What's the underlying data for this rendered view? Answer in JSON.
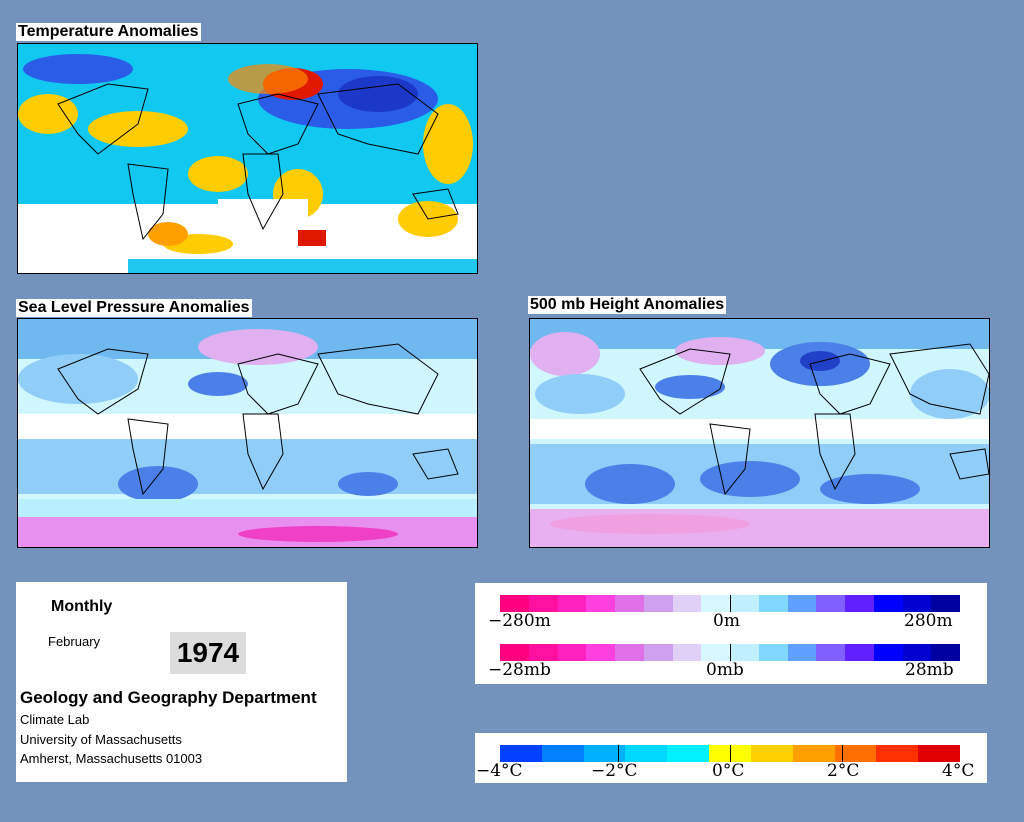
{
  "panels": {
    "temperature_title": "Temperature Anomalies",
    "slp_title": "Sea Level Pressure Anomalies",
    "height_title": "500 mb Height Anomalies"
  },
  "info": {
    "period": "Monthly",
    "month": "February",
    "year": "1974",
    "department": "Geology and Geography Department",
    "lab": "Climate Lab",
    "university": "University of Massachusetts",
    "address": "Amherst, Massachusetts 01003"
  },
  "legend_height": {
    "min_label": "−280m",
    "mid_label": "0m",
    "max_label": "280m",
    "colors": [
      "#ff0080",
      "#ff10a0",
      "#ff20c0",
      "#ff40e0",
      "#e070e8",
      "#d0a0f0",
      "#e0d0f8",
      "#d8f8ff",
      "#c0f0ff",
      "#80d8ff",
      "#60a0ff",
      "#8060ff",
      "#6020ff",
      "#0000ff",
      "#0000d0",
      "#0000a0"
    ]
  },
  "legend_pressure": {
    "min_label": "−28mb",
    "mid_label": "0mb",
    "max_label": "28mb",
    "colors": [
      "#ff0080",
      "#ff10a0",
      "#ff20c0",
      "#ff40e0",
      "#e070e8",
      "#d0a0f0",
      "#e0d0f8",
      "#d8f8ff",
      "#c0f0ff",
      "#80d8ff",
      "#60a0ff",
      "#8060ff",
      "#6020ff",
      "#0000ff",
      "#0000d0",
      "#0000a0"
    ]
  },
  "legend_temperature": {
    "labels": [
      "−4°C",
      "−2°C",
      "0°C",
      "2°C",
      "4°C"
    ],
    "colors": [
      "#0040ff",
      "#0080ff",
      "#00b0ff",
      "#00d8ff",
      "#00f0ff",
      "#ffff00",
      "#ffd000",
      "#ffa000",
      "#ff7000",
      "#ff3000",
      "#e00000"
    ]
  }
}
